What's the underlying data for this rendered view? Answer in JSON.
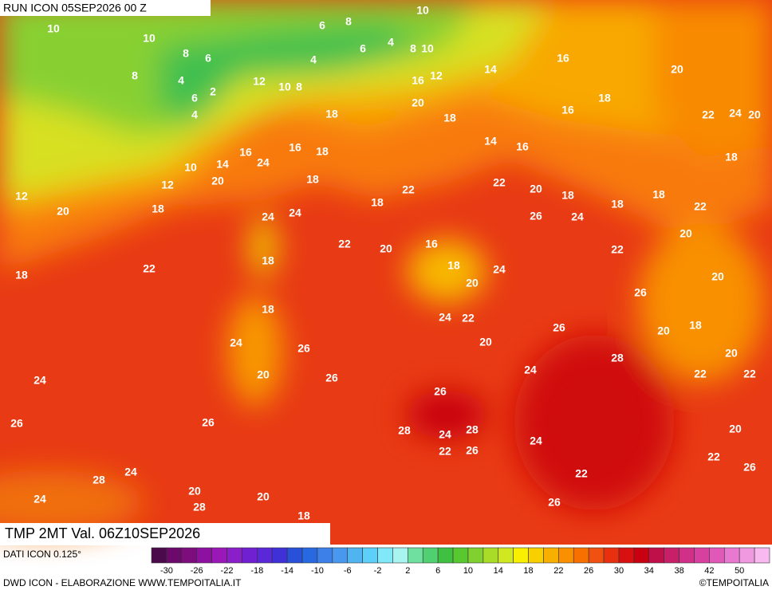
{
  "header": {
    "run": "RUN ICON 05SEP2026 00 Z",
    "title": "TMP 2MT Val. 06Z10SEP2026"
  },
  "map_labels": [
    10,
    10,
    10,
    6,
    8,
    4,
    6,
    8,
    10,
    8,
    6,
    4,
    8,
    4,
    12,
    10,
    8,
    16,
    12,
    14,
    16,
    20,
    6,
    2,
    4,
    20,
    18,
    16,
    18,
    18,
    22,
    24,
    20,
    16,
    16,
    18,
    14,
    16,
    18,
    10,
    14,
    24,
    20,
    12,
    18,
    22,
    22,
    20,
    18,
    18,
    12,
    20,
    18,
    24,
    24,
    18,
    26,
    24,
    18,
    22,
    20,
    22,
    20,
    16,
    18,
    24,
    22,
    18,
    18,
    22,
    20,
    20,
    26,
    18,
    24,
    22,
    26,
    18,
    20,
    24,
    26,
    20,
    28,
    20,
    24,
    20,
    26,
    22,
    22,
    24,
    26,
    26,
    26,
    28,
    24,
    28,
    24,
    20,
    22,
    26,
    22,
    26,
    24,
    28,
    22,
    20,
    24,
    20,
    28,
    26,
    18
  ],
  "colorbar": {
    "colors": [
      "#4b0a4b",
      "#6b0a6b",
      "#7d0c7d",
      "#8e10a0",
      "#9a18b8",
      "#8a1ec8",
      "#7020d0",
      "#5a28d8",
      "#4030d8",
      "#2850d8",
      "#2868e0",
      "#3c80e8",
      "#4898f0",
      "#50b4f0",
      "#5cd0f8",
      "#80e8f8",
      "#a8f4f0",
      "#70e0a0",
      "#50d070",
      "#40c040",
      "#58c830",
      "#80d030",
      "#a8dc28",
      "#d0e820",
      "#f8f000",
      "#f8d000",
      "#f8b000",
      "#f89000",
      "#f87000",
      "#f05010",
      "#e83010",
      "#d81010",
      "#c80010",
      "#c0104a",
      "#c82068",
      "#d03088",
      "#d840a0",
      "#e058b8",
      "#e878d0",
      "#f098e0",
      "#f8b8f0"
    ],
    "labels": [
      -30,
      -26,
      -22,
      -18,
      -14,
      -10,
      -6,
      -2,
      2,
      6,
      10,
      14,
      18,
      22,
      26,
      30,
      34,
      38,
      42,
      50
    ]
  },
  "footer": {
    "data_source": "DATI ICON 0.125°",
    "credit": "DWD ICON - ELABORAZIONE WWW.TEMPOITALIA.IT",
    "copyright": "©TEMPOITALIA"
  }
}
